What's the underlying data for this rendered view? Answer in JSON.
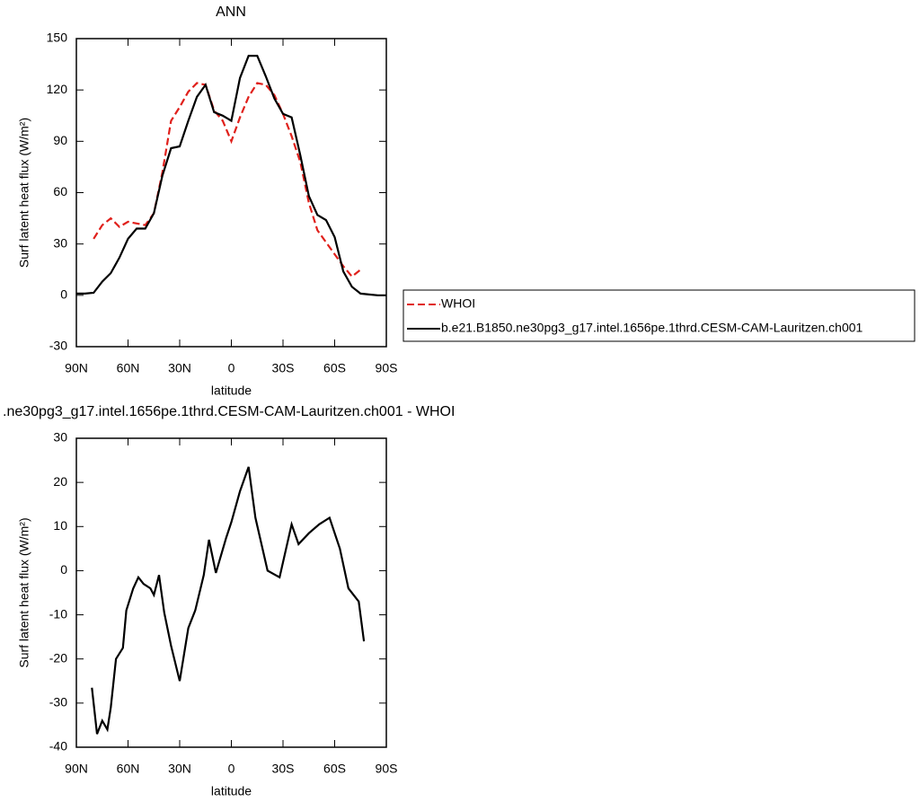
{
  "chart_data": [
    {
      "type": "line",
      "title": "ANN",
      "xlabel": "latitude",
      "ylabel": "Surf latent heat flux (W/m²)",
      "x": [
        90,
        85,
        80,
        75,
        70,
        65,
        60,
        55,
        50,
        45,
        40,
        35,
        30,
        25,
        20,
        15,
        10,
        5,
        0,
        -5,
        -10,
        -15,
        -20,
        -25,
        -30,
        -35,
        -40,
        -45,
        -50,
        -55,
        -60,
        -65,
        -70,
        -75,
        -80,
        -85,
        -90
      ],
      "series": [
        {
          "name": "WHOI",
          "color": "#e0201b",
          "linestyle": "dashed",
          "values": [
            null,
            null,
            33,
            41,
            45,
            40,
            43,
            42,
            41,
            48,
            72,
            102,
            110,
            119,
            124,
            123,
            108,
            102,
            90,
            104,
            116,
            124,
            123,
            117,
            106,
            93,
            78,
            54,
            38,
            31,
            24,
            17,
            11,
            15,
            null,
            null,
            null
          ]
        },
        {
          "name": "b.e21.B1850.ne30pg3_g17.intel.1656pe.1thrd.CESM-CAM-Lauritzen.ch001",
          "color": "#000000",
          "linestyle": "solid",
          "values": [
            1,
            1,
            1.5,
            8,
            13,
            22,
            33,
            39,
            39,
            48,
            70,
            86,
            87,
            102,
            116,
            123,
            107,
            105,
            102,
            127,
            140,
            140,
            128,
            115,
            106,
            104,
            82,
            58,
            47,
            44,
            34,
            14,
            5,
            1,
            0.5,
            0,
            0
          ]
        }
      ],
      "xlim": [
        90,
        -90
      ],
      "xticks": [
        {
          "value": 90,
          "label": "90N"
        },
        {
          "value": 60,
          "label": "60N"
        },
        {
          "value": 30,
          "label": "30N"
        },
        0,
        {
          "value": -30,
          "label": "30S"
        },
        {
          "value": -60,
          "label": "60S"
        },
        {
          "value": -90,
          "label": "90S"
        }
      ],
      "ylim": [
        -30,
        150
      ],
      "yticks": [
        -30,
        0,
        30,
        60,
        90,
        120,
        150
      ],
      "legend": "outside right"
    },
    {
      "type": "line",
      "title": ".ne30pg3_g17.intel.1656pe.1thrd.CESM-CAM-Lauritzen.ch001 - WHOI",
      "xlabel": "latitude",
      "ylabel": "Surf latent heat flux (W/m²)",
      "x": [
        81,
        78,
        75,
        72,
        70,
        67,
        63,
        61,
        57,
        54,
        51,
        47,
        45,
        42,
        39,
        35,
        30,
        25,
        21,
        16,
        13,
        9,
        3,
        0,
        -5,
        -10,
        -14,
        -21,
        -28,
        -35,
        -39,
        -45,
        -51,
        -57,
        -63,
        -68,
        -74,
        -77
      ],
      "color": "#000000",
      "values": [
        -26.5,
        -37,
        -34,
        -36,
        -31,
        -20,
        -17.5,
        -9,
        -4,
        -1.5,
        -3,
        -4,
        -5.5,
        -1,
        -9.5,
        -17,
        -25,
        -13,
        -9,
        -1,
        7,
        -0.5,
        7.5,
        11,
        18,
        23.5,
        12,
        0,
        -1.5,
        10.5,
        6,
        8.5,
        10.5,
        12,
        5,
        -4,
        -7,
        -16
      ],
      "xlim": [
        90,
        -90
      ],
      "xticks": [
        {
          "value": 90,
          "label": "90N"
        },
        {
          "value": 60,
          "label": "60N"
        },
        {
          "value": 30,
          "label": "30N"
        },
        0,
        {
          "value": -30,
          "label": "30S"
        },
        {
          "value": -60,
          "label": "60S"
        },
        {
          "value": -90,
          "label": "90S"
        }
      ],
      "ylim": [
        -40,
        30
      ],
      "yticks": [
        -40,
        -30,
        -20,
        -10,
        0,
        10,
        20,
        30
      ]
    }
  ]
}
